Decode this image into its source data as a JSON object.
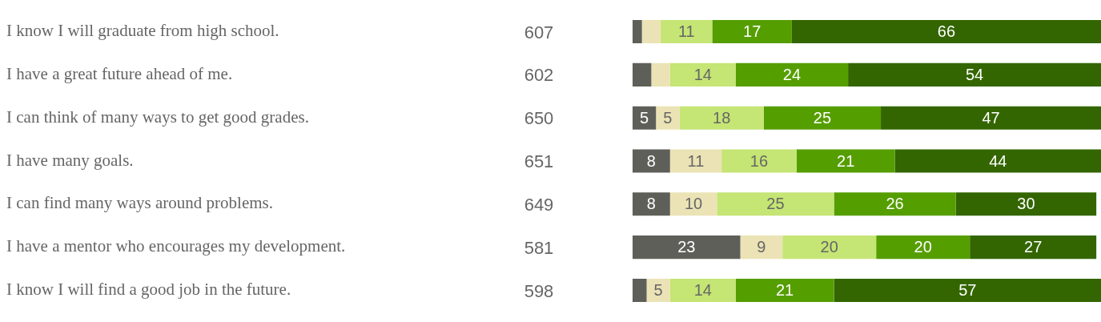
{
  "chart_data": {
    "type": "bar",
    "orientation": "horizontal",
    "stacked": true,
    "tick_labels": "y",
    "legend": false,
    "xlim": [
      0,
      100
    ],
    "categories": [
      "I know I will graduate from high school.",
      "I have a great future ahead of me.",
      "I can think of many ways to get good grades.",
      "I have many goals.",
      "I can find many ways around problems.",
      "I have a mentor who encourages my development.",
      "I know I will find a good job in the future."
    ],
    "annotations": [
      "607",
      "602",
      "650",
      "651",
      "649",
      "581",
      "598"
    ],
    "series": [
      {
        "color": "#5f5f5a",
        "values": [
          2,
          4,
          5,
          8,
          8,
          23,
          3
        ],
        "value_labels": [
          null,
          null,
          "5",
          "8",
          "8",
          "23",
          null
        ]
      },
      {
        "color": "#ebe3b5",
        "values": [
          4,
          4,
          5,
          11,
          10,
          9,
          5
        ],
        "value_labels": [
          null,
          null,
          "5",
          "11",
          "10",
          "9",
          "5"
        ]
      },
      {
        "color": "#c5e574",
        "values": [
          11,
          14,
          18,
          16,
          25,
          20,
          14
        ],
        "value_labels": [
          "11",
          "14",
          "18",
          "16",
          "25",
          "20",
          "14"
        ]
      },
      {
        "color": "#559e00",
        "values": [
          17,
          24,
          25,
          21,
          26,
          20,
          21
        ],
        "value_labels": [
          "17",
          "24",
          "25",
          "21",
          "26",
          "20",
          "21"
        ]
      },
      {
        "color": "#336600",
        "values": [
          66,
          54,
          47,
          44,
          30,
          27,
          57
        ],
        "value_labels": [
          "66",
          "54",
          "47",
          "44",
          "30",
          "27",
          "57"
        ]
      }
    ]
  }
}
